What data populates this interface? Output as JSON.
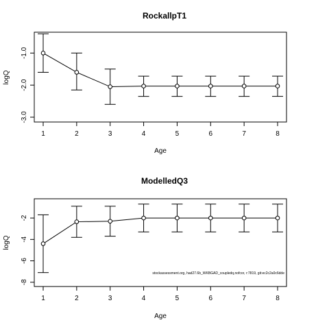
{
  "chart_data": [
    {
      "type": "line",
      "title": "RockallpT1",
      "xlabel": "Age",
      "ylabel": "logQ",
      "x": [
        1,
        2,
        3,
        4,
        5,
        6,
        7,
        8
      ],
      "y": [
        -1.0,
        -1.6,
        -2.05,
        -2.03,
        -2.03,
        -2.03,
        -2.03,
        -2.03
      ],
      "lower": [
        -1.6,
        -2.15,
        -2.6,
        -2.35,
        -2.35,
        -2.35,
        -2.35,
        -2.35
      ],
      "upper": [
        -0.4,
        -1.0,
        -1.5,
        -1.72,
        -1.72,
        -1.72,
        -1.72,
        -1.72
      ],
      "xlim": [
        1,
        8
      ],
      "ylim": [
        -3.15,
        -0.35
      ],
      "xticks": [
        "1",
        "2",
        "3",
        "4",
        "5",
        "6",
        "7",
        "8"
      ],
      "yticks": [
        -1.0,
        -2.0,
        -3.0
      ],
      "ytick_labels": [
        "-1.0",
        "-2.0",
        "-3.0"
      ],
      "grid": false,
      "error_bars": true
    },
    {
      "type": "line",
      "title": "ModelledQ3",
      "xlabel": "Age",
      "ylabel": "logQ",
      "x": [
        1,
        2,
        3,
        4,
        5,
        6,
        7,
        8
      ],
      "y": [
        -4.4,
        -2.35,
        -2.3,
        -2.0,
        -2.0,
        -2.0,
        -2.0,
        -2.0
      ],
      "lower": [
        -7.1,
        -3.8,
        -3.7,
        -3.3,
        -3.3,
        -3.3,
        -3.3,
        -3.3
      ],
      "upper": [
        -1.7,
        -0.9,
        -0.9,
        -0.7,
        -0.7,
        -0.7,
        -0.7,
        -0.7
      ],
      "xlim": [
        1,
        8
      ],
      "ylim": [
        -8.4,
        -0.2
      ],
      "xticks": [
        "1",
        "2",
        "3",
        "4",
        "5",
        "6",
        "7",
        "8"
      ],
      "yticks": [
        -2,
        -4,
        -6,
        -8
      ],
      "ytick_labels": [
        "-2",
        "-4",
        "-6",
        "-8"
      ],
      "grid": false,
      "error_bars": true,
      "annotation": "stockassessment.org, had27.6b_WKBGAD_coupledq,nofcor, r:7819, git:ec2c2a0c6dde"
    }
  ]
}
